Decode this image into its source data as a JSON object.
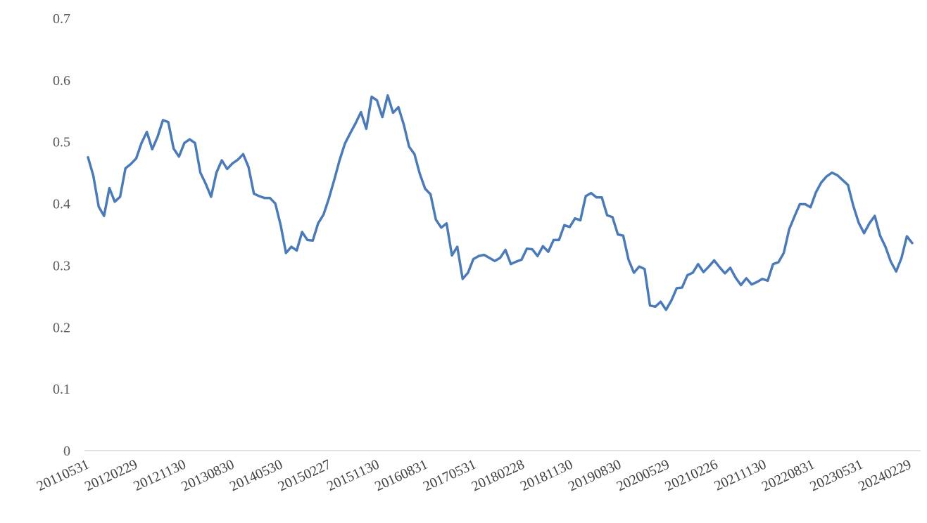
{
  "chart_data": {
    "type": "line",
    "title": "",
    "xlabel": "",
    "ylabel": "",
    "ylim": [
      0,
      0.7
    ],
    "yticks": [
      "0",
      "0.1",
      "0.2",
      "0.3",
      "0.4",
      "0.5",
      "0.6",
      "0.7"
    ],
    "xtick_labels": [
      "20110531",
      "20120229",
      "20121130",
      "20130830",
      "20140530",
      "20150227",
      "20151130",
      "20160831",
      "20170531",
      "20180228",
      "20181130",
      "20190830",
      "20200529",
      "20210226",
      "20211130",
      "20220831",
      "20230531",
      "20240229"
    ],
    "grid": false,
    "legend": "none",
    "series": [
      {
        "color": "#4a7ab8",
        "values": [
          0.475,
          0.445,
          0.395,
          0.38,
          0.425,
          0.403,
          0.411,
          0.457,
          0.464,
          0.473,
          0.498,
          0.516,
          0.488,
          0.508,
          0.535,
          0.532,
          0.489,
          0.476,
          0.498,
          0.504,
          0.498,
          0.45,
          0.432,
          0.411,
          0.45,
          0.47,
          0.456,
          0.465,
          0.471,
          0.48,
          0.459,
          0.416,
          0.412,
          0.409,
          0.409,
          0.4,
          0.365,
          0.32,
          0.33,
          0.324,
          0.354,
          0.341,
          0.34,
          0.368,
          0.382,
          0.408,
          0.438,
          0.47,
          0.497,
          0.514,
          0.53,
          0.548,
          0.521,
          0.573,
          0.567,
          0.54,
          0.575,
          0.547,
          0.556,
          0.528,
          0.492,
          0.48,
          0.448,
          0.424,
          0.415,
          0.374,
          0.361,
          0.368,
          0.316,
          0.33,
          0.278,
          0.288,
          0.31,
          0.315,
          0.317,
          0.312,
          0.307,
          0.312,
          0.325,
          0.302,
          0.306,
          0.309,
          0.327,
          0.326,
          0.315,
          0.331,
          0.322,
          0.341,
          0.341,
          0.365,
          0.362,
          0.376,
          0.373,
          0.412,
          0.417,
          0.41,
          0.41,
          0.381,
          0.378,
          0.35,
          0.348,
          0.309,
          0.288,
          0.298,
          0.294,
          0.235,
          0.233,
          0.241,
          0.228,
          0.243,
          0.263,
          0.264,
          0.284,
          0.288,
          0.302,
          0.289,
          0.298,
          0.308,
          0.297,
          0.287,
          0.296,
          0.28,
          0.268,
          0.279,
          0.269,
          0.273,
          0.278,
          0.275,
          0.302,
          0.305,
          0.32,
          0.358,
          0.379,
          0.399,
          0.399,
          0.394,
          0.418,
          0.434,
          0.444,
          0.45,
          0.446,
          0.438,
          0.43,
          0.396,
          0.369,
          0.352,
          0.368,
          0.38,
          0.348,
          0.33,
          0.306,
          0.29,
          0.312,
          0.347,
          0.336
        ]
      }
    ]
  }
}
